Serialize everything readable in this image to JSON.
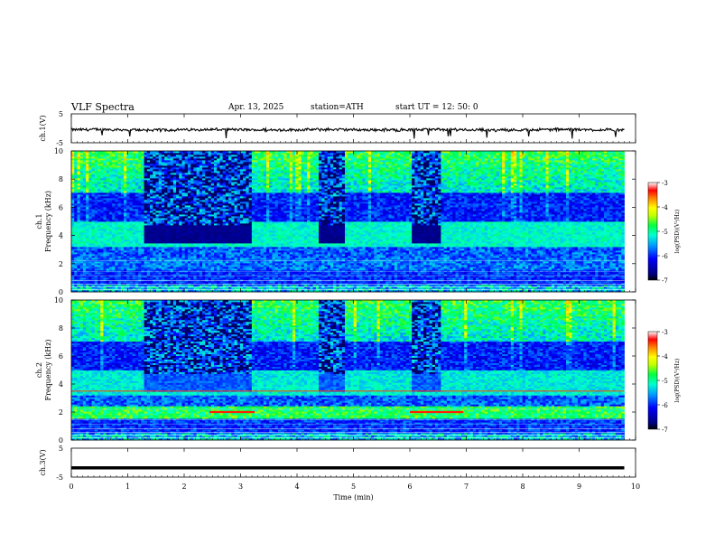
{
  "header": {
    "title": "VLF  Spectra",
    "date": "Apr. 13, 2025",
    "station": "station=ATH",
    "start_ut": "start  UT  =   12: 50: 0"
  },
  "chart_data": [
    {
      "type": "line",
      "id": "ch1",
      "ylabel": "ch.1(V)",
      "ylim": [
        -5,
        5
      ],
      "ytick_labels": [
        "-5",
        "5"
      ],
      "xlim": [
        0,
        10
      ],
      "color": "#000000",
      "baseline_value": -0.5,
      "description_value_range": [
        -2.5,
        0.5
      ]
    },
    {
      "type": "heatmap",
      "id": "ch1-spectrogram",
      "ylabel": "ch.1\nFrequency (kHz)",
      "ylim": [
        0,
        10
      ],
      "ytick_labels": [
        "0",
        "2",
        "4",
        "6",
        "8",
        "10"
      ],
      "xlim": [
        0,
        10
      ],
      "data_extent_min": 9.8,
      "bursts_min": [
        [
          1.3,
          2.5
        ],
        [
          2.5,
          3.2
        ],
        [
          4.4,
          4.85
        ],
        [
          6.05,
          6.55
        ]
      ],
      "colorbar": {
        "label": "log(PSD)(V²/Hz)",
        "range": [
          -7,
          -3
        ],
        "tick_labels": [
          "-3",
          "-4",
          "-5",
          "-6",
          "-7"
        ]
      }
    },
    {
      "type": "heatmap",
      "id": "ch2-spectrogram",
      "ylabel": "ch.2\nFrequency (kHz)",
      "ylim": [
        0,
        10
      ],
      "ytick_labels": [
        "0",
        "2",
        "4",
        "6",
        "8",
        "10"
      ],
      "xlim": [
        0,
        10
      ],
      "data_extent_min": 9.8,
      "bursts_min": [
        [
          1.3,
          2.5
        ],
        [
          2.5,
          3.2
        ],
        [
          4.4,
          4.85
        ],
        [
          6.05,
          6.55
        ]
      ],
      "red_line_khz": 2.0,
      "red_line_segments_min": [
        [
          2.45,
          3.25
        ],
        [
          6.0,
          6.95
        ]
      ],
      "colorbar": {
        "label": "log(PSD)(V²/Hz)",
        "range": [
          -7,
          -3
        ],
        "tick_labels": [
          "-3",
          "-4",
          "-5",
          "-6",
          "-7"
        ]
      }
    },
    {
      "type": "line",
      "id": "ch3",
      "ylabel": "ch.3(V)",
      "ylim": [
        -5,
        5
      ],
      "ytick_labels": [
        "-5",
        "5"
      ],
      "xlim": [
        0,
        10
      ],
      "xlabel": "Time  (min)",
      "xtick_labels": [
        "0",
        "1",
        "2",
        "3",
        "4",
        "5",
        "6",
        "7",
        "8",
        "9",
        "10"
      ],
      "color": "#000000",
      "constant_value": -1.8
    }
  ]
}
